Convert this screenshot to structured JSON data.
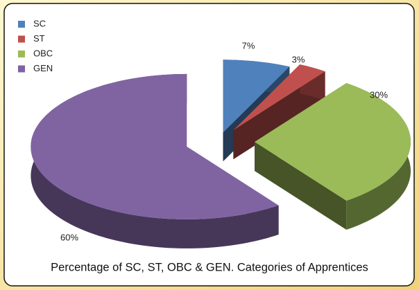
{
  "chart_data": {
    "type": "pie",
    "title": "Percentage of SC, ST, OBC & GEN. Categories of Apprentices",
    "categories": [
      "SC",
      "ST",
      "OBC",
      "GEN"
    ],
    "values": [
      7,
      3,
      30,
      60
    ],
    "value_labels": [
      "7%",
      "3%",
      "30%",
      "60%"
    ],
    "colors": [
      "#4f81bd",
      "#c0504d",
      "#9bbb59",
      "#8064a2"
    ],
    "legend": "upper left"
  }
}
